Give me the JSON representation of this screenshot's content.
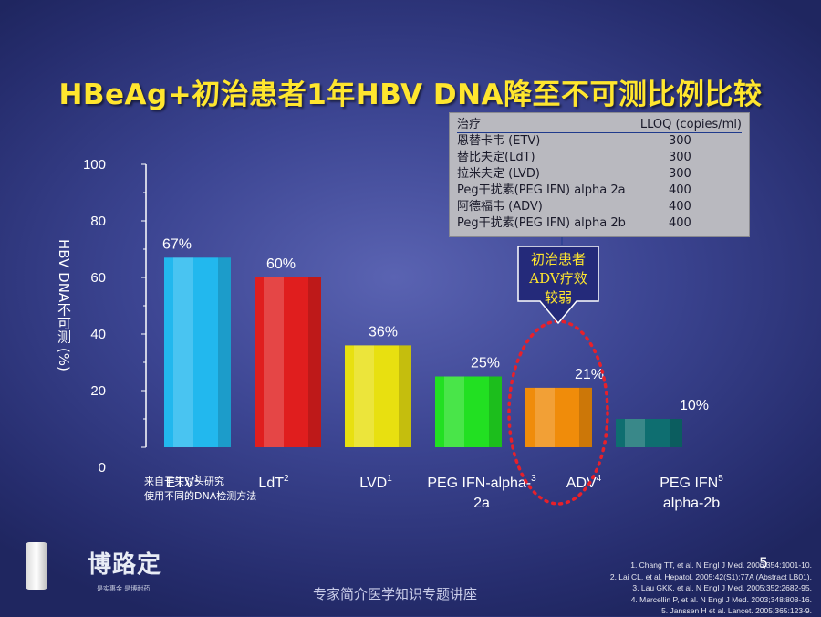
{
  "slide": {
    "title": "HBeAg+初治患者1年HBV DNA降至不可测比例比较",
    "y_axis_label": "HBV DNA不可测 (%)",
    "page_number": "5",
    "bottom_caption": "专家简介医学知识专题讲座",
    "footnote_line1": "来自于头对头研究",
    "footnote_line2": "使用不同的DNA检测方法"
  },
  "lloq_table": {
    "header_left": "治疗",
    "header_right": "LLOQ (copies/ml)",
    "rows": [
      {
        "name": "恩替卡韦 (ETV)",
        "value": "300"
      },
      {
        "name": "替比夫定(LdT)",
        "value": "300"
      },
      {
        "name": "拉米夫定 (LVD)",
        "value": "300"
      },
      {
        "name": "Peg干扰素(PEG IFN) alpha 2a",
        "value": "400"
      },
      {
        "name": "阿德福韦 (ADV)",
        "value": "400"
      },
      {
        "name": "Peg干扰素(PEG IFN) alpha 2b",
        "value": "400"
      }
    ]
  },
  "callout": {
    "line1": "初治患者",
    "line2": "ADV疗效",
    "line3": "较弱"
  },
  "references": [
    "1. Chang TT, et al. N Engl J Med. 2006;354:1001-10.",
    "2. Lai CL, et al. Hepatol. 2005;42(S1):77A (Abstract LB01).",
    "3. Lau GKK, et al. N Engl J Med. 2005;352:2682-95.",
    "4. Marcellin P, et al. N Engl J Med. 2003;348:808-16.",
    "5. Janssen H et al. Lancet. 2005;365:123-9."
  ],
  "logo": {
    "brand_text": "博路定",
    "sub_text": "是实惠金 是博耐药"
  },
  "chart_data": {
    "type": "bar",
    "categories": [
      "ETV",
      "LdT",
      "LVD",
      "PEG IFN-alpha-2a",
      "ADV",
      "PEG IFN alpha-2b"
    ],
    "category_labels": [
      {
        "line1": "ETV",
        "sup": "1",
        "line2": ""
      },
      {
        "line1": "LdT",
        "sup": "2",
        "line2": ""
      },
      {
        "line1": "LVD",
        "sup": "1",
        "line2": ""
      },
      {
        "line1": "PEG IFN-alpha-",
        "sup": "3",
        "line2": "2a"
      },
      {
        "line1": "ADV",
        "sup": "4",
        "line2": ""
      },
      {
        "line1": "PEG IFN",
        "sup": "5",
        "line2": "alpha-2b"
      }
    ],
    "values": [
      67,
      60,
      36,
      25,
      21,
      10
    ],
    "value_labels": [
      "67%",
      "60%",
      "36%",
      "25%",
      "21%",
      "10%"
    ],
    "bar_colors": [
      "#22b8ee",
      "#e01e1e",
      "#e8e010",
      "#22e022",
      "#f08c0a",
      "#0e6e70"
    ],
    "ylabel": "HBV DNA不可测 (%)",
    "ylim": [
      0,
      100
    ],
    "yticks": [
      0,
      20,
      40,
      60,
      80,
      100
    ],
    "highlight": {
      "category": "ADV",
      "style": "red dotted ellipse"
    }
  }
}
